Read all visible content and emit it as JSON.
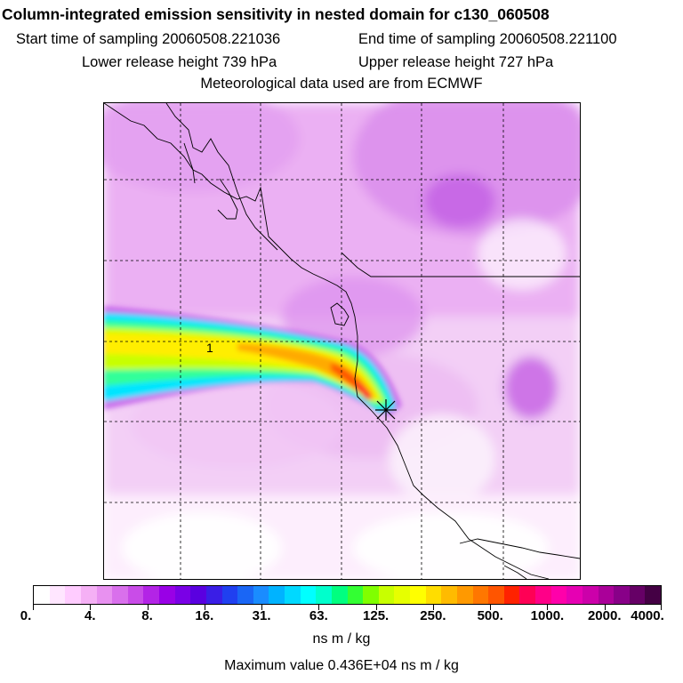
{
  "header": {
    "title": "Column-integrated emission sensitivity in nested domain for c130_060508",
    "start_time": "Start time of sampling 20060508.221036",
    "end_time": "End time of sampling 20060508.221100",
    "lower_release": "Lower release height  739 hPa",
    "upper_release": "Upper release height  727 hPa",
    "met_data": "Meteorological data used are from ECMWF"
  },
  "map": {
    "contour_label": "1",
    "plume_colors": [
      "#00e5ff",
      "#00ffcc",
      "#33ff66",
      "#c8ff00",
      "#ffee00",
      "#ffaa00",
      "#ff6600",
      "#ff0033"
    ],
    "background_tint": "#e8a8f0",
    "coast_color": "#000000",
    "grid_color": "#000000"
  },
  "colorbar": {
    "colors": [
      "#ffffff",
      "#ffe6ff",
      "#ffccff",
      "#f5b0f5",
      "#e891f0",
      "#d970ec",
      "#c94ce8",
      "#b324e6",
      "#9900e6",
      "#7a00e6",
      "#5a00e0",
      "#3a1ee6",
      "#2040f0",
      "#1a66f5",
      "#1a8cff",
      "#00b3ff",
      "#00d9ff",
      "#00ffff",
      "#00ffcc",
      "#00ff80",
      "#33ff33",
      "#80ff00",
      "#c8ff00",
      "#e6ff00",
      "#ffff00",
      "#ffdd00",
      "#ffbb00",
      "#ff9900",
      "#ff7700",
      "#ff5500",
      "#ff2200",
      "#ff0055",
      "#ff0088",
      "#ff00aa",
      "#e600b3",
      "#cc00aa",
      "#aa0099",
      "#880088",
      "#660066",
      "#440044"
    ],
    "tick_labels": [
      "0.",
      "4.",
      "8.",
      "16.",
      "31.",
      "63.",
      "125.",
      "250.",
      "500.",
      "1000.",
      "2000.",
      "4000."
    ],
    "units": "ns m / kg",
    "max_value": "Maximum value  0.436E+04 ns m / kg"
  }
}
